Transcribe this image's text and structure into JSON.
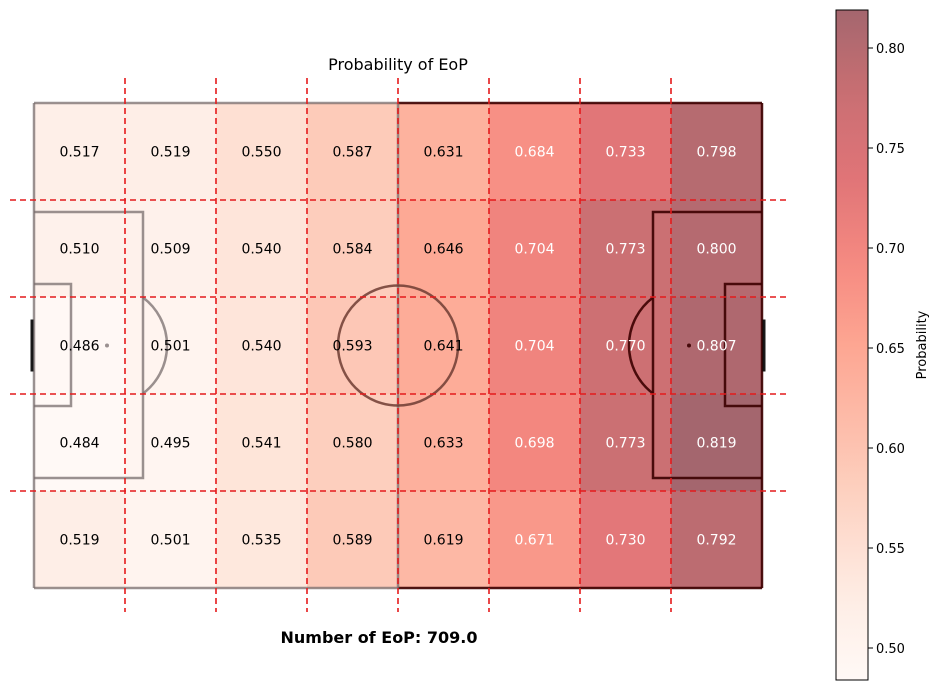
{
  "chart_data": {
    "type": "heatmap",
    "title": "Probability of EoP",
    "footer": "Number of EoP: 709.0",
    "colorbar_label": "Probability",
    "vmin": 0.484,
    "vmax": 0.819,
    "colorbar_ticks": [
      "0.50",
      "0.55",
      "0.60",
      "0.65",
      "0.70",
      "0.75",
      "0.80"
    ],
    "rows": 5,
    "cols": 8,
    "values": [
      [
        0.517,
        0.519,
        0.55,
        0.587,
        0.631,
        0.684,
        0.733,
        0.798
      ],
      [
        0.51,
        0.509,
        0.54,
        0.584,
        0.646,
        0.704,
        0.773,
        0.8
      ],
      [
        0.486,
        0.501,
        0.54,
        0.593,
        0.641,
        0.704,
        0.77,
        0.807
      ],
      [
        0.484,
        0.495,
        0.541,
        0.58,
        0.633,
        0.698,
        0.773,
        0.819
      ],
      [
        0.519,
        0.501,
        0.535,
        0.589,
        0.619,
        0.671,
        0.73,
        0.792
      ]
    ],
    "labels": [
      [
        "0.517",
        "0.519",
        "0.550",
        "0.587",
        "0.631",
        "0.684",
        "0.733",
        "0.798"
      ],
      [
        "0.510",
        "0.509",
        "0.540",
        "0.584",
        "0.646",
        "0.704",
        "0.773",
        "0.800"
      ],
      [
        "0.486",
        "0.501",
        "0.540",
        "0.593",
        "0.641",
        "0.704",
        "0.770",
        "0.807"
      ],
      [
        "0.484",
        "0.495",
        "0.541",
        "0.580",
        "0.633",
        "0.698",
        "0.773",
        "0.819"
      ],
      [
        "0.519",
        "0.501",
        "0.535",
        "0.589",
        "0.619",
        "0.671",
        "0.730",
        "0.792"
      ]
    ],
    "colormap": "Reds",
    "grid_line_color": "#e41a1c"
  }
}
